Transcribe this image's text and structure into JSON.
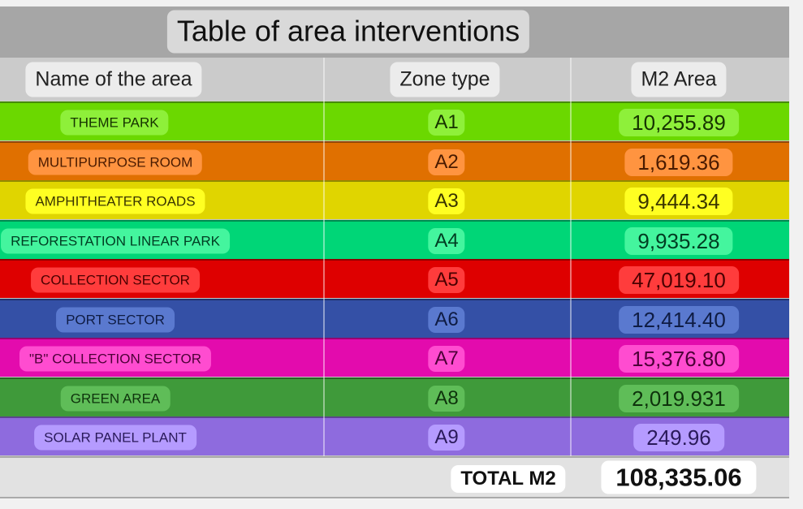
{
  "title": "Table of area interventions",
  "headers": {
    "name": "Name of the area",
    "zone": "Zone type",
    "area": "M2 Area"
  },
  "rows": [
    {
      "name": "THEME PARK",
      "zone": "A1",
      "area": "10,255.89",
      "row_color": "#6bd800",
      "pill_color": "#8ef03a",
      "text_color": "#163300"
    },
    {
      "name": "MULTIPURPOSE ROOM",
      "zone": "A2",
      "area": "1,619.36",
      "row_color": "#e07000",
      "pill_color": "#ff9440",
      "text_color": "#4a1b00"
    },
    {
      "name": "AMPHITHEATER ROADS",
      "zone": "A3",
      "area": "9,444.34",
      "row_color": "#e0d500",
      "pill_color": "#ffff22",
      "text_color": "#3a3500"
    },
    {
      "name": "REFORESTATION LINEAR PARK",
      "zone": "A4",
      "area": "9,935.28",
      "row_color": "#00d677",
      "pill_color": "#44f59e",
      "text_color": "#003d22"
    },
    {
      "name": "COLLECTION SECTOR",
      "zone": "A5",
      "area": "47,019.10",
      "row_color": "#de0000",
      "pill_color": "#ff3c3c",
      "text_color": "#4a0000"
    },
    {
      "name": "PORT SECTOR",
      "zone": "A6",
      "area": "12,414.40",
      "row_color": "#3450a6",
      "pill_color": "#5a79cf",
      "text_color": "#0f1c44"
    },
    {
      "name": "\"B\" COLLECTION SECTOR",
      "zone": "A7",
      "area": "15,376.80",
      "row_color": "#e30bad",
      "pill_color": "#ff4cd0",
      "text_color": "#4d0037"
    },
    {
      "name": "GREEN AREA",
      "zone": "A8",
      "area": "2,019.931",
      "row_color": "#3f9a3a",
      "pill_color": "#5fbd58",
      "text_color": "#0e330c"
    },
    {
      "name": "SOLAR PANEL PLANT",
      "zone": "A9",
      "area": "249.96",
      "row_color": "#8e6bde",
      "pill_color": "#b59bff",
      "text_color": "#2a1a5a"
    }
  ],
  "total": {
    "label": "TOTAL M2",
    "value": "108,335.06"
  }
}
